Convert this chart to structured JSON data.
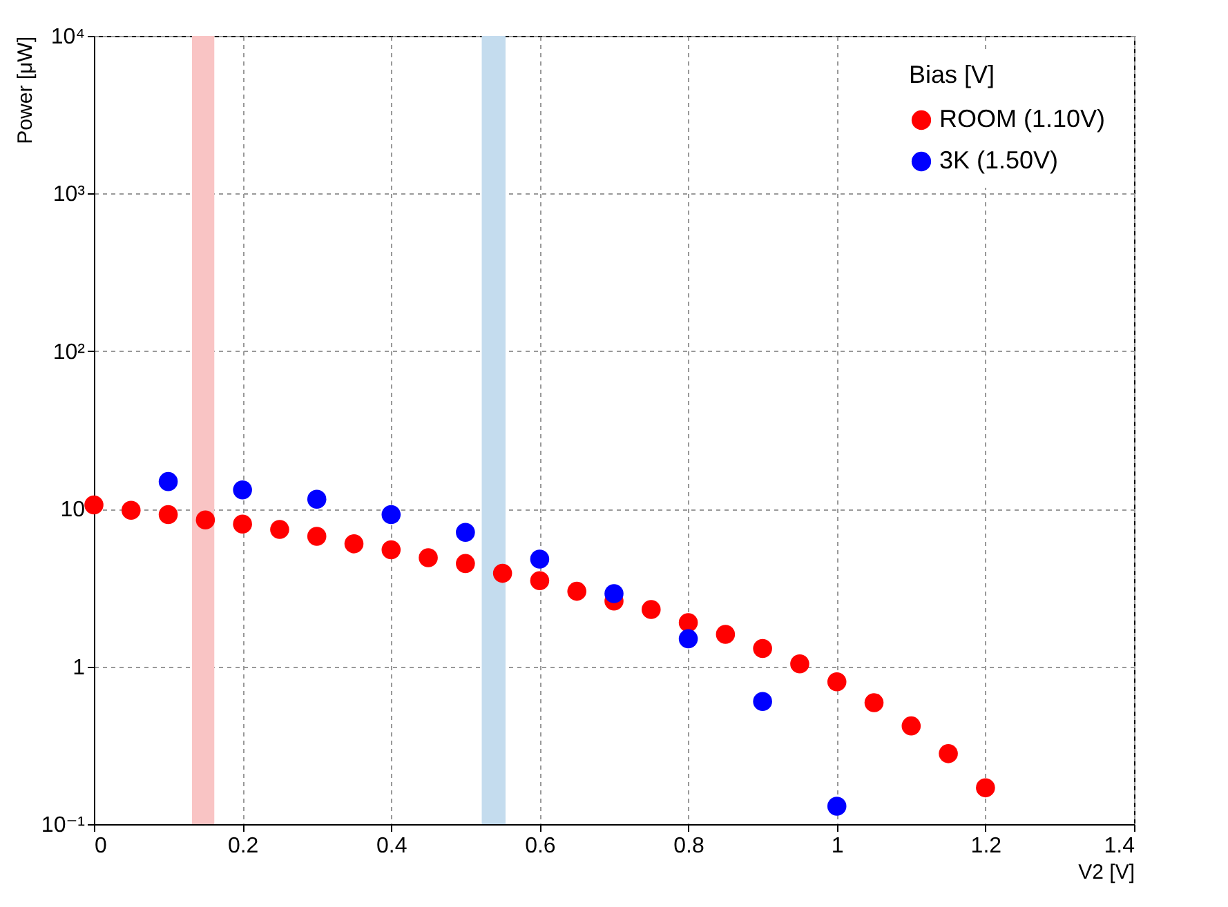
{
  "chart_data": {
    "type": "scatter",
    "xlabel": "V2 [V]",
    "ylabel": "Power [μW]",
    "legend_title": "Bias [V]",
    "legend": "top right",
    "grid": true,
    "marker": "circle",
    "log": "y",
    "xlim": [
      0,
      1.4
    ],
    "xticks": [
      0,
      0.2,
      0.4,
      0.6,
      0.8,
      1,
      1.2,
      1.4
    ],
    "ylim": [
      0.1,
      10000
    ],
    "yticks": [
      {
        "value": 0.1,
        "label": "10⁻¹"
      },
      1,
      10,
      {
        "value": 100,
        "label": "10²"
      },
      {
        "value": 1000,
        "label": "10³"
      },
      {
        "value": 10000,
        "label": "10⁴"
      }
    ],
    "bands": [
      {
        "axis": "x",
        "from": 0.132,
        "to": 0.162,
        "color": "#f9c4c4"
      },
      {
        "axis": "x",
        "from": 0.522,
        "to": 0.554,
        "color": "#c4dcee"
      }
    ],
    "series": [
      {
        "name": "ROOM (1.10V)",
        "color": "#ff0000",
        "x": [
          0,
          0.05,
          0.1,
          0.15,
          0.2,
          0.25,
          0.3,
          0.35,
          0.4,
          0.45,
          0.5,
          0.55,
          0.6,
          0.65,
          0.7,
          0.75,
          0.8,
          0.85,
          0.9,
          0.95,
          1,
          1.05,
          1.1,
          1.15,
          1.2
        ],
        "values": [
          10.6,
          9.8,
          9.2,
          8.5,
          8.0,
          7.4,
          6.7,
          6.0,
          5.5,
          4.9,
          4.5,
          3.9,
          3.5,
          3.0,
          2.6,
          2.3,
          1.9,
          1.6,
          1.3,
          1.04,
          0.8,
          0.59,
          0.42,
          0.28,
          0.17
        ]
      },
      {
        "name": "3K (1.50V)",
        "color": "#0000ff",
        "x": [
          0.1,
          0.2,
          0.3,
          0.4,
          0.5,
          0.6,
          0.7,
          0.8,
          0.9,
          1
        ],
        "values": [
          14.9,
          13.2,
          11.5,
          9.2,
          7.1,
          4.8,
          2.9,
          1.5,
          0.6,
          0.13
        ]
      }
    ]
  }
}
